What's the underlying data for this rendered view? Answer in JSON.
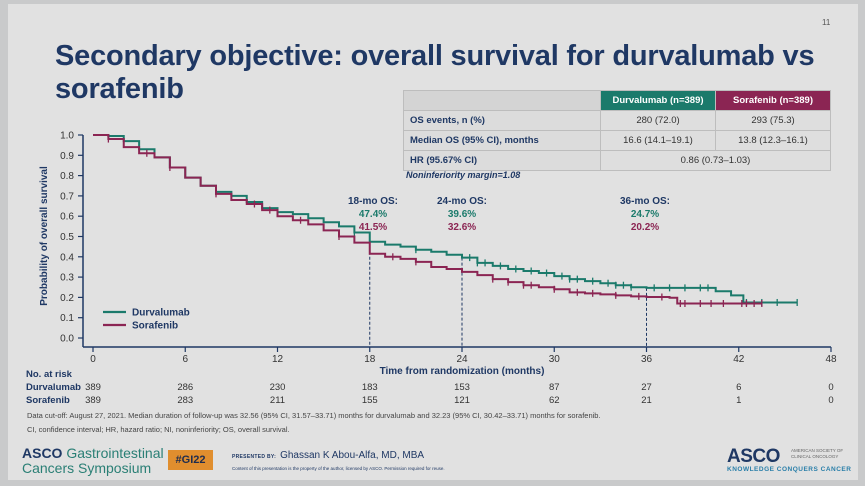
{
  "slide": {
    "page_number": "11",
    "title": "Secondary objective: overall survival for durvalumab vs sorafenib"
  },
  "table": {
    "headers": [
      "",
      "Durvalumab (n=389)",
      "Sorafenib (n=389)"
    ],
    "rows": [
      {
        "label": "OS events, n (%)",
        "durvalumab": "280 (72.0)",
        "sorafenib": "293 (75.3)"
      },
      {
        "label": "Median OS (95% CI), months",
        "durvalumab": "16.6 (14.1–19.1)",
        "sorafenib": "13.8 (12.3–16.1)"
      },
      {
        "label": "HR (95.67% CI)",
        "combined": "0.86 (0.73–1.03)"
      }
    ],
    "note": "Noninferiority margin=1.08"
  },
  "colors": {
    "durvalumab": "#1b7a6b",
    "sorafenib": "#8b2553",
    "title": "#1f3864",
    "axis": "#1f3864"
  },
  "chart_data": {
    "type": "line",
    "title": "",
    "xlabel": "Time from randomization (months)",
    "ylabel": "Probability of overall survival",
    "xlim": [
      0,
      48
    ],
    "ylim": [
      0,
      1.0
    ],
    "x_ticks": [
      0,
      6,
      12,
      18,
      24,
      30,
      36,
      42,
      48
    ],
    "y_ticks": [
      "0.0",
      "0.1",
      "0.2",
      "0.3",
      "0.4",
      "0.5",
      "0.6",
      "0.7",
      "0.8",
      "0.9",
      "1.0"
    ],
    "grid": false,
    "legend_position": "bottom-left",
    "series": [
      {
        "name": "Durvalumab",
        "color": "#1b7a6b",
        "points": [
          [
            0,
            1.0
          ],
          [
            1,
            0.995
          ],
          [
            2,
            0.97
          ],
          [
            3,
            0.93
          ],
          [
            4,
            0.89
          ],
          [
            5,
            0.84
          ],
          [
            6,
            0.79
          ],
          [
            7,
            0.75
          ],
          [
            8,
            0.72
          ],
          [
            9,
            0.7
          ],
          [
            10,
            0.67
          ],
          [
            11,
            0.64
          ],
          [
            12,
            0.62
          ],
          [
            13,
            0.61
          ],
          [
            14,
            0.59
          ],
          [
            15,
            0.57
          ],
          [
            16,
            0.55
          ],
          [
            17,
            0.52
          ],
          [
            18,
            0.474
          ],
          [
            19,
            0.46
          ],
          [
            20,
            0.45
          ],
          [
            21,
            0.435
          ],
          [
            22,
            0.425
          ],
          [
            23,
            0.41
          ],
          [
            24,
            0.396
          ],
          [
            25,
            0.37
          ],
          [
            26,
            0.355
          ],
          [
            27,
            0.34
          ],
          [
            28,
            0.33
          ],
          [
            29,
            0.32
          ],
          [
            30,
            0.305
          ],
          [
            31,
            0.29
          ],
          [
            32,
            0.28
          ],
          [
            33,
            0.27
          ],
          [
            34,
            0.26
          ],
          [
            35,
            0.25
          ],
          [
            36,
            0.247
          ],
          [
            40,
            0.247
          ],
          [
            40.5,
            0.23
          ],
          [
            41.5,
            0.21
          ],
          [
            42.3,
            0.175
          ],
          [
            45.8,
            0.175
          ]
        ],
        "censor_times": [
          2,
          8,
          17,
          21,
          24.5,
          25,
          25.5,
          26.5,
          27.5,
          28.5,
          29.5,
          30.5,
          31,
          31.5,
          32.5,
          33.5,
          34,
          34.5,
          35,
          36.5,
          37.5,
          38.5,
          39.5,
          40,
          42.5,
          43.5,
          44.5,
          45.8
        ]
      },
      {
        "name": "Sorafenib",
        "color": "#8b2553",
        "points": [
          [
            0,
            1.0
          ],
          [
            1,
            0.98
          ],
          [
            2,
            0.94
          ],
          [
            3,
            0.91
          ],
          [
            4,
            0.89
          ],
          [
            5,
            0.84
          ],
          [
            6,
            0.79
          ],
          [
            7,
            0.75
          ],
          [
            8,
            0.71
          ],
          [
            9,
            0.68
          ],
          [
            10,
            0.66
          ],
          [
            11,
            0.63
          ],
          [
            12,
            0.6
          ],
          [
            13,
            0.58
          ],
          [
            14,
            0.56
          ],
          [
            15,
            0.53
          ],
          [
            16,
            0.5
          ],
          [
            17,
            0.47
          ],
          [
            18,
            0.415
          ],
          [
            19,
            0.4
          ],
          [
            20,
            0.39
          ],
          [
            21,
            0.375
          ],
          [
            22,
            0.35
          ],
          [
            23,
            0.34
          ],
          [
            24,
            0.326
          ],
          [
            25,
            0.31
          ],
          [
            26,
            0.29
          ],
          [
            27,
            0.275
          ],
          [
            28,
            0.26
          ],
          [
            29,
            0.25
          ],
          [
            30,
            0.24
          ],
          [
            31,
            0.225
          ],
          [
            32,
            0.22
          ],
          [
            33,
            0.215
          ],
          [
            34,
            0.21
          ],
          [
            35,
            0.205
          ],
          [
            36,
            0.202
          ],
          [
            37.5,
            0.198
          ],
          [
            38,
            0.17
          ],
          [
            43.5,
            0.17
          ]
        ],
        "censor_times": [
          1,
          3.5,
          5,
          8,
          10.5,
          11.5,
          13.5,
          16,
          19.5,
          21,
          26,
          27,
          28,
          28.5,
          30,
          31.5,
          32.5,
          34,
          35.5,
          37,
          38.2,
          38.5,
          39.5,
          40.2,
          41,
          42.2,
          42.5,
          43,
          43.5
        ]
      }
    ],
    "annotations": [
      {
        "month": 18,
        "label": "18-mo OS:",
        "durvalumab": "47.4%",
        "sorafenib": "41.5%"
      },
      {
        "month": 24,
        "label": "24-mo OS:",
        "durvalumab": "39.6%",
        "sorafenib": "32.6%"
      },
      {
        "month": 36,
        "label": "36-mo OS:",
        "durvalumab": "24.7%",
        "sorafenib": "20.2%"
      }
    ],
    "legend": [
      "Durvalumab",
      "Sorafenib"
    ]
  },
  "risk_table": {
    "title": "No. at risk",
    "times": [
      0,
      6,
      12,
      18,
      24,
      30,
      36,
      42,
      48
    ],
    "rows": [
      {
        "name": "Durvalumab",
        "values": [
          "389",
          "286",
          "230",
          "183",
          "153",
          "87",
          "27",
          "6",
          "0"
        ]
      },
      {
        "name": "Sorafenib",
        "values": [
          "389",
          "283",
          "211",
          "155",
          "121",
          "62",
          "21",
          "1",
          "0"
        ]
      }
    ]
  },
  "footnotes": [
    "Data cut-off: August 27, 2021. Median duration of follow-up was 32.56 (95% CI, 31.57–33.71) months for durvalumab and 32.23 (95% CI, 30.42–33.71) months for sorafenib.",
    "CI, confidence interval; HR, hazard ratio; NI, noninferiority; OS, overall survival."
  ],
  "footer": {
    "asco_word": "ASCO",
    "symposium_line1": "Gastrointestinal",
    "symposium_line2": "Cancers Symposium",
    "hashtag": "#GI22",
    "presented_by_label": "PRESENTED BY:",
    "presenter": "Ghassan K Abou-Alfa, MD, MBA",
    "legal": "Content of this presentation is the property of the author, licensed by ASCO. Permission required for reuse.",
    "asco_logo": "ASCO",
    "asco_full": "AMERICAN SOCIETY OF CLINICAL ONCOLOGY",
    "asco_tagline": "KNOWLEDGE CONQUERS CANCER"
  }
}
